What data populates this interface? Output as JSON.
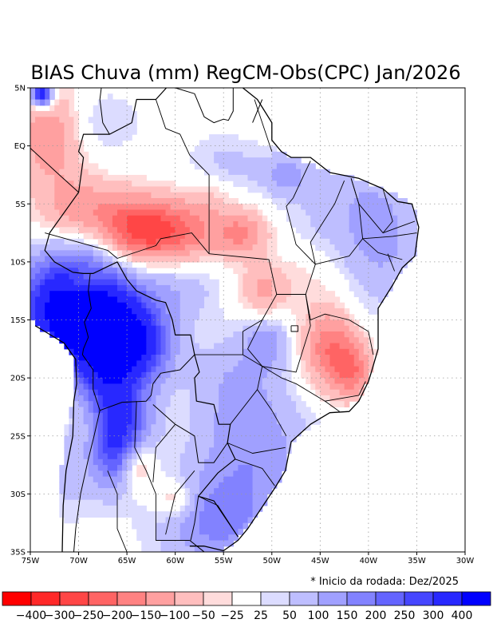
{
  "chart_data": {
    "type": "heatmap",
    "title": "BIAS Chuva (mm) RegCM-Obs(CPC) Jan/2026",
    "note": "* Inicio da rodada: Dez/2025",
    "x_range": [
      -75,
      -30
    ],
    "y_range": [
      -35,
      5
    ],
    "x_ticks": [
      {
        "value": -75,
        "label": "75W"
      },
      {
        "value": -70,
        "label": "70W"
      },
      {
        "value": -65,
        "label": "65W"
      },
      {
        "value": -60,
        "label": "60W"
      },
      {
        "value": -55,
        "label": "55W"
      },
      {
        "value": -50,
        "label": "50W"
      },
      {
        "value": -45,
        "label": "45W"
      },
      {
        "value": -40,
        "label": "40W"
      },
      {
        "value": -35,
        "label": "35W"
      },
      {
        "value": -30,
        "label": "30W"
      }
    ],
    "y_ticks": [
      {
        "value": 5,
        "label": "5N"
      },
      {
        "value": 0,
        "label": "EQ"
      },
      {
        "value": -5,
        "label": "5S"
      },
      {
        "value": -10,
        "label": "10S"
      },
      {
        "value": -15,
        "label": "15S"
      },
      {
        "value": -20,
        "label": "20S"
      },
      {
        "value": -25,
        "label": "25S"
      },
      {
        "value": -30,
        "label": "30S"
      },
      {
        "value": -35,
        "label": "35S"
      }
    ],
    "grid": true,
    "colorbar": {
      "colors": [
        "#ff0000",
        "#ff2828",
        "#ff4646",
        "#ff6464",
        "#ff8282",
        "#ffa0a0",
        "#ffbebe",
        "#ffdcdc",
        "#ffffff",
        "#dcdcff",
        "#bebeff",
        "#a0a0ff",
        "#8282ff",
        "#6464ff",
        "#4646ff",
        "#2828ff",
        "#0000ff"
      ],
      "labels": [
        "-400",
        "-300",
        "-250",
        "-200",
        "-150",
        "-100",
        "-50",
        "-25",
        "25",
        "50",
        "100",
        "150",
        "200",
        "250",
        "300",
        "400"
      ]
    },
    "field": {
      "land_bounds": [
        [
          -72,
          -31
        ],
        [
          -52,
          -29
        ]
      ],
      "centers": [
        {
          "lon": -70.5,
          "lat": -14.0,
          "amp": 520,
          "sx": 3.8,
          "sy": 3.2
        },
        {
          "lon": -65.5,
          "lat": -17.0,
          "amp": 470,
          "sx": 3.2,
          "sy": 2.6
        },
        {
          "lon": -67.0,
          "lat": -21.0,
          "amp": 150,
          "sx": 2.0,
          "sy": 2.0
        },
        {
          "lon": -66.5,
          "lat": -26.0,
          "amp": 240,
          "sx": 1.6,
          "sy": 2.6
        },
        {
          "lon": -64.5,
          "lat": -24.0,
          "amp": 170,
          "sx": 1.8,
          "sy": 2.2
        },
        {
          "lon": -56.0,
          "lat": -32.5,
          "amp": 150,
          "sx": 4.2,
          "sy": 2.8
        },
        {
          "lon": -52.0,
          "lat": -26.5,
          "amp": 130,
          "sx": 4.5,
          "sy": 4.0
        },
        {
          "lon": -53.5,
          "lat": -20.0,
          "amp": 80,
          "sx": 3.0,
          "sy": 3.0
        },
        {
          "lon": -42.0,
          "lat": -5.0,
          "amp": 75,
          "sx": 5.0,
          "sy": 4.0
        },
        {
          "lon": -38.5,
          "lat": -9.0,
          "amp": 80,
          "sx": 3.0,
          "sy": 4.0
        },
        {
          "lon": -48.5,
          "lat": -2.5,
          "amp": 100,
          "sx": 1.6,
          "sy": 1.2
        },
        {
          "lon": -55.0,
          "lat": -2.0,
          "amp": 70,
          "sx": 3.0,
          "sy": 2.0
        },
        {
          "lon": -68.0,
          "lat": 2.0,
          "amp": 60,
          "sx": 3.0,
          "sy": 2.0
        },
        {
          "lon": -50.5,
          "lat": -17.0,
          "amp": 110,
          "sx": 1.5,
          "sy": 1.5
        },
        {
          "lon": -59.5,
          "lat": -12.0,
          "amp": 80,
          "sx": 3.0,
          "sy": 2.0
        },
        {
          "lon": -73.8,
          "lat": 4.5,
          "amp": 400,
          "sx": 0.8,
          "sy": 0.8
        },
        {
          "lon": -71.0,
          "lat": -28.0,
          "amp": 70,
          "sx": 2.0,
          "sy": 3.0
        },
        {
          "lon": -60.5,
          "lat": -7.5,
          "amp": -220,
          "sx": 3.5,
          "sy": 2.0
        },
        {
          "lon": -64.5,
          "lat": -7.0,
          "amp": -160,
          "sx": 2.5,
          "sy": 2.0
        },
        {
          "lon": -70.0,
          "lat": -5.5,
          "amp": -130,
          "sx": 3.0,
          "sy": 2.0
        },
        {
          "lon": -73.0,
          "lat": 1.0,
          "amp": -150,
          "sx": 2.5,
          "sy": 3.0
        },
        {
          "lon": -53.0,
          "lat": -7.5,
          "amp": -150,
          "sx": 2.0,
          "sy": 1.5
        },
        {
          "lon": -51.0,
          "lat": -12.5,
          "amp": -110,
          "sx": 1.8,
          "sy": 1.5
        },
        {
          "lon": -44.0,
          "lat": -17.5,
          "amp": -190,
          "sx": 2.0,
          "sy": 2.5
        },
        {
          "lon": -41.5,
          "lat": -19.5,
          "amp": -150,
          "sx": 1.5,
          "sy": 1.8
        },
        {
          "lon": -69.5,
          "lat": -12.0,
          "amp": -150,
          "sx": 1.5,
          "sy": 1.0
        },
        {
          "lon": -64.0,
          "lat": -27.5,
          "amp": -120,
          "sx": 1.2,
          "sy": 1.5
        },
        {
          "lon": -60.0,
          "lat": -30.5,
          "amp": -110,
          "sx": 1.5,
          "sy": 1.2
        },
        {
          "lon": -56.5,
          "lat": -4.0,
          "amp": -60,
          "sx": 2.0,
          "sy": 1.5
        },
        {
          "lon": -46.5,
          "lat": -11.0,
          "amp": -40,
          "sx": 3.0,
          "sy": 2.0
        }
      ]
    }
  }
}
